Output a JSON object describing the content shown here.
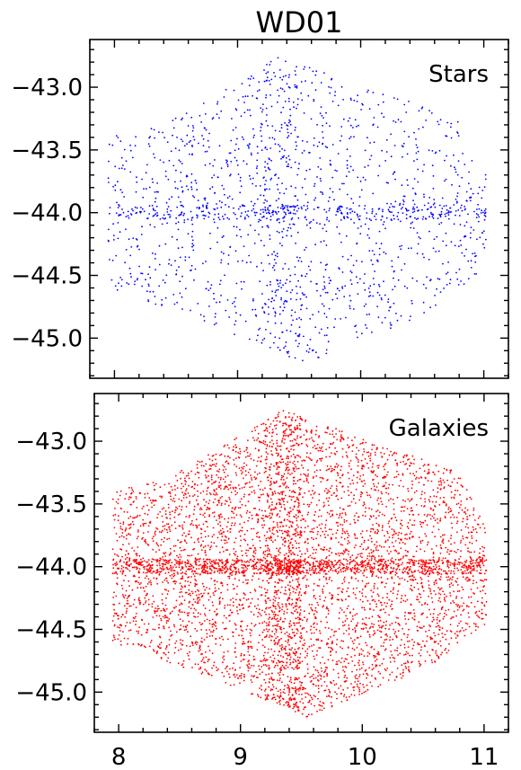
{
  "figure_title": "WD01",
  "chart_data": [
    {
      "type": "scatter",
      "panel": "top",
      "title": "WD01",
      "annotation": "Stars",
      "color": "#0000ff",
      "xlim": [
        7.8,
        11.2
      ],
      "ylim": [
        -45.32,
        -42.62
      ],
      "x_ticks": [
        8,
        9,
        10,
        11
      ],
      "x_tick_labels_shown": false,
      "y_ticks": [
        -43.0,
        -43.5,
        -44.0,
        -44.5,
        -45.0
      ],
      "y_tick_labels": [
        "−43.0",
        "−43.5",
        "−44.0",
        "−44.5",
        "−45.0"
      ],
      "n_points_approx": 1800,
      "footprint_vertices": [
        [
          9.35,
          -42.75
        ],
        [
          10.8,
          -43.25
        ],
        [
          11.02,
          -43.7
        ],
        [
          11.02,
          -44.45
        ],
        [
          10.55,
          -44.8
        ],
        [
          9.55,
          -45.2
        ],
        [
          8.8,
          -44.9
        ],
        [
          7.95,
          -44.6
        ],
        [
          7.95,
          -43.4
        ],
        [
          8.4,
          -43.3
        ]
      ],
      "grid": false
    },
    {
      "type": "scatter",
      "panel": "bottom",
      "annotation": "Galaxies",
      "color": "#ff0000",
      "xlim": [
        7.8,
        11.2
      ],
      "ylim": [
        -45.32,
        -42.62
      ],
      "x_ticks": [
        8,
        9,
        10,
        11
      ],
      "x_tick_labels": [
        "8",
        "9",
        "10",
        "11"
      ],
      "y_ticks": [
        -43.0,
        -43.5,
        -44.0,
        -44.5,
        -45.0
      ],
      "y_tick_labels": [
        "−43.0",
        "−43.5",
        "−44.0",
        "−44.5",
        "−45.0"
      ],
      "n_points_approx": 6000,
      "footprint_vertices": [
        [
          9.35,
          -42.75
        ],
        [
          10.8,
          -43.25
        ],
        [
          11.02,
          -43.7
        ],
        [
          11.02,
          -44.45
        ],
        [
          10.55,
          -44.8
        ],
        [
          9.55,
          -45.2
        ],
        [
          8.8,
          -44.9
        ],
        [
          7.95,
          -44.6
        ],
        [
          7.95,
          -43.4
        ],
        [
          8.4,
          -43.3
        ]
      ],
      "grid": false
    }
  ]
}
